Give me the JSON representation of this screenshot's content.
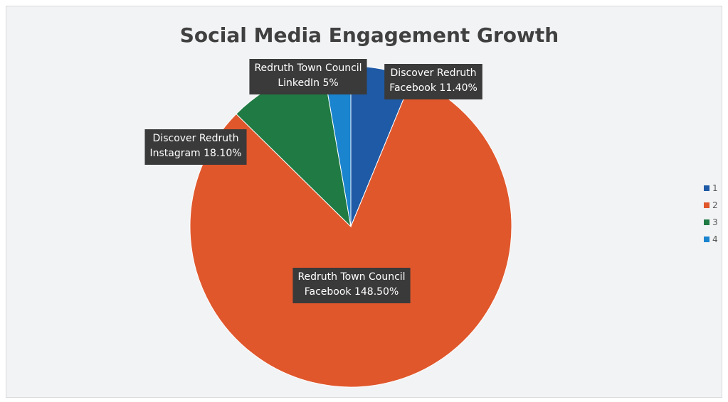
{
  "chart_data": {
    "type": "pie",
    "title": "Social Media Engagement Growth",
    "slices": [
      {
        "legend": "1",
        "label": [
          "Discover Redruth",
          "Facebook 11.40%"
        ],
        "value": 11.4,
        "color": "#1f5aa6"
      },
      {
        "legend": "2",
        "label": [
          "Redruth Town Council",
          "Facebook 148.50%"
        ],
        "value": 148.5,
        "color": "#e0572c"
      },
      {
        "legend": "3",
        "label": [
          "Discover Redruth",
          "Instagram 18.10%"
        ],
        "value": 18.1,
        "color": "#1f7a43"
      },
      {
        "legend": "4",
        "label": [
          "Redruth Town Council",
          "LinkedIn 5%"
        ],
        "value": 5,
        "color": "#1a84cf"
      }
    ],
    "start_angle_deg": 0,
    "direction": "clockwise",
    "legend_position": "right"
  }
}
